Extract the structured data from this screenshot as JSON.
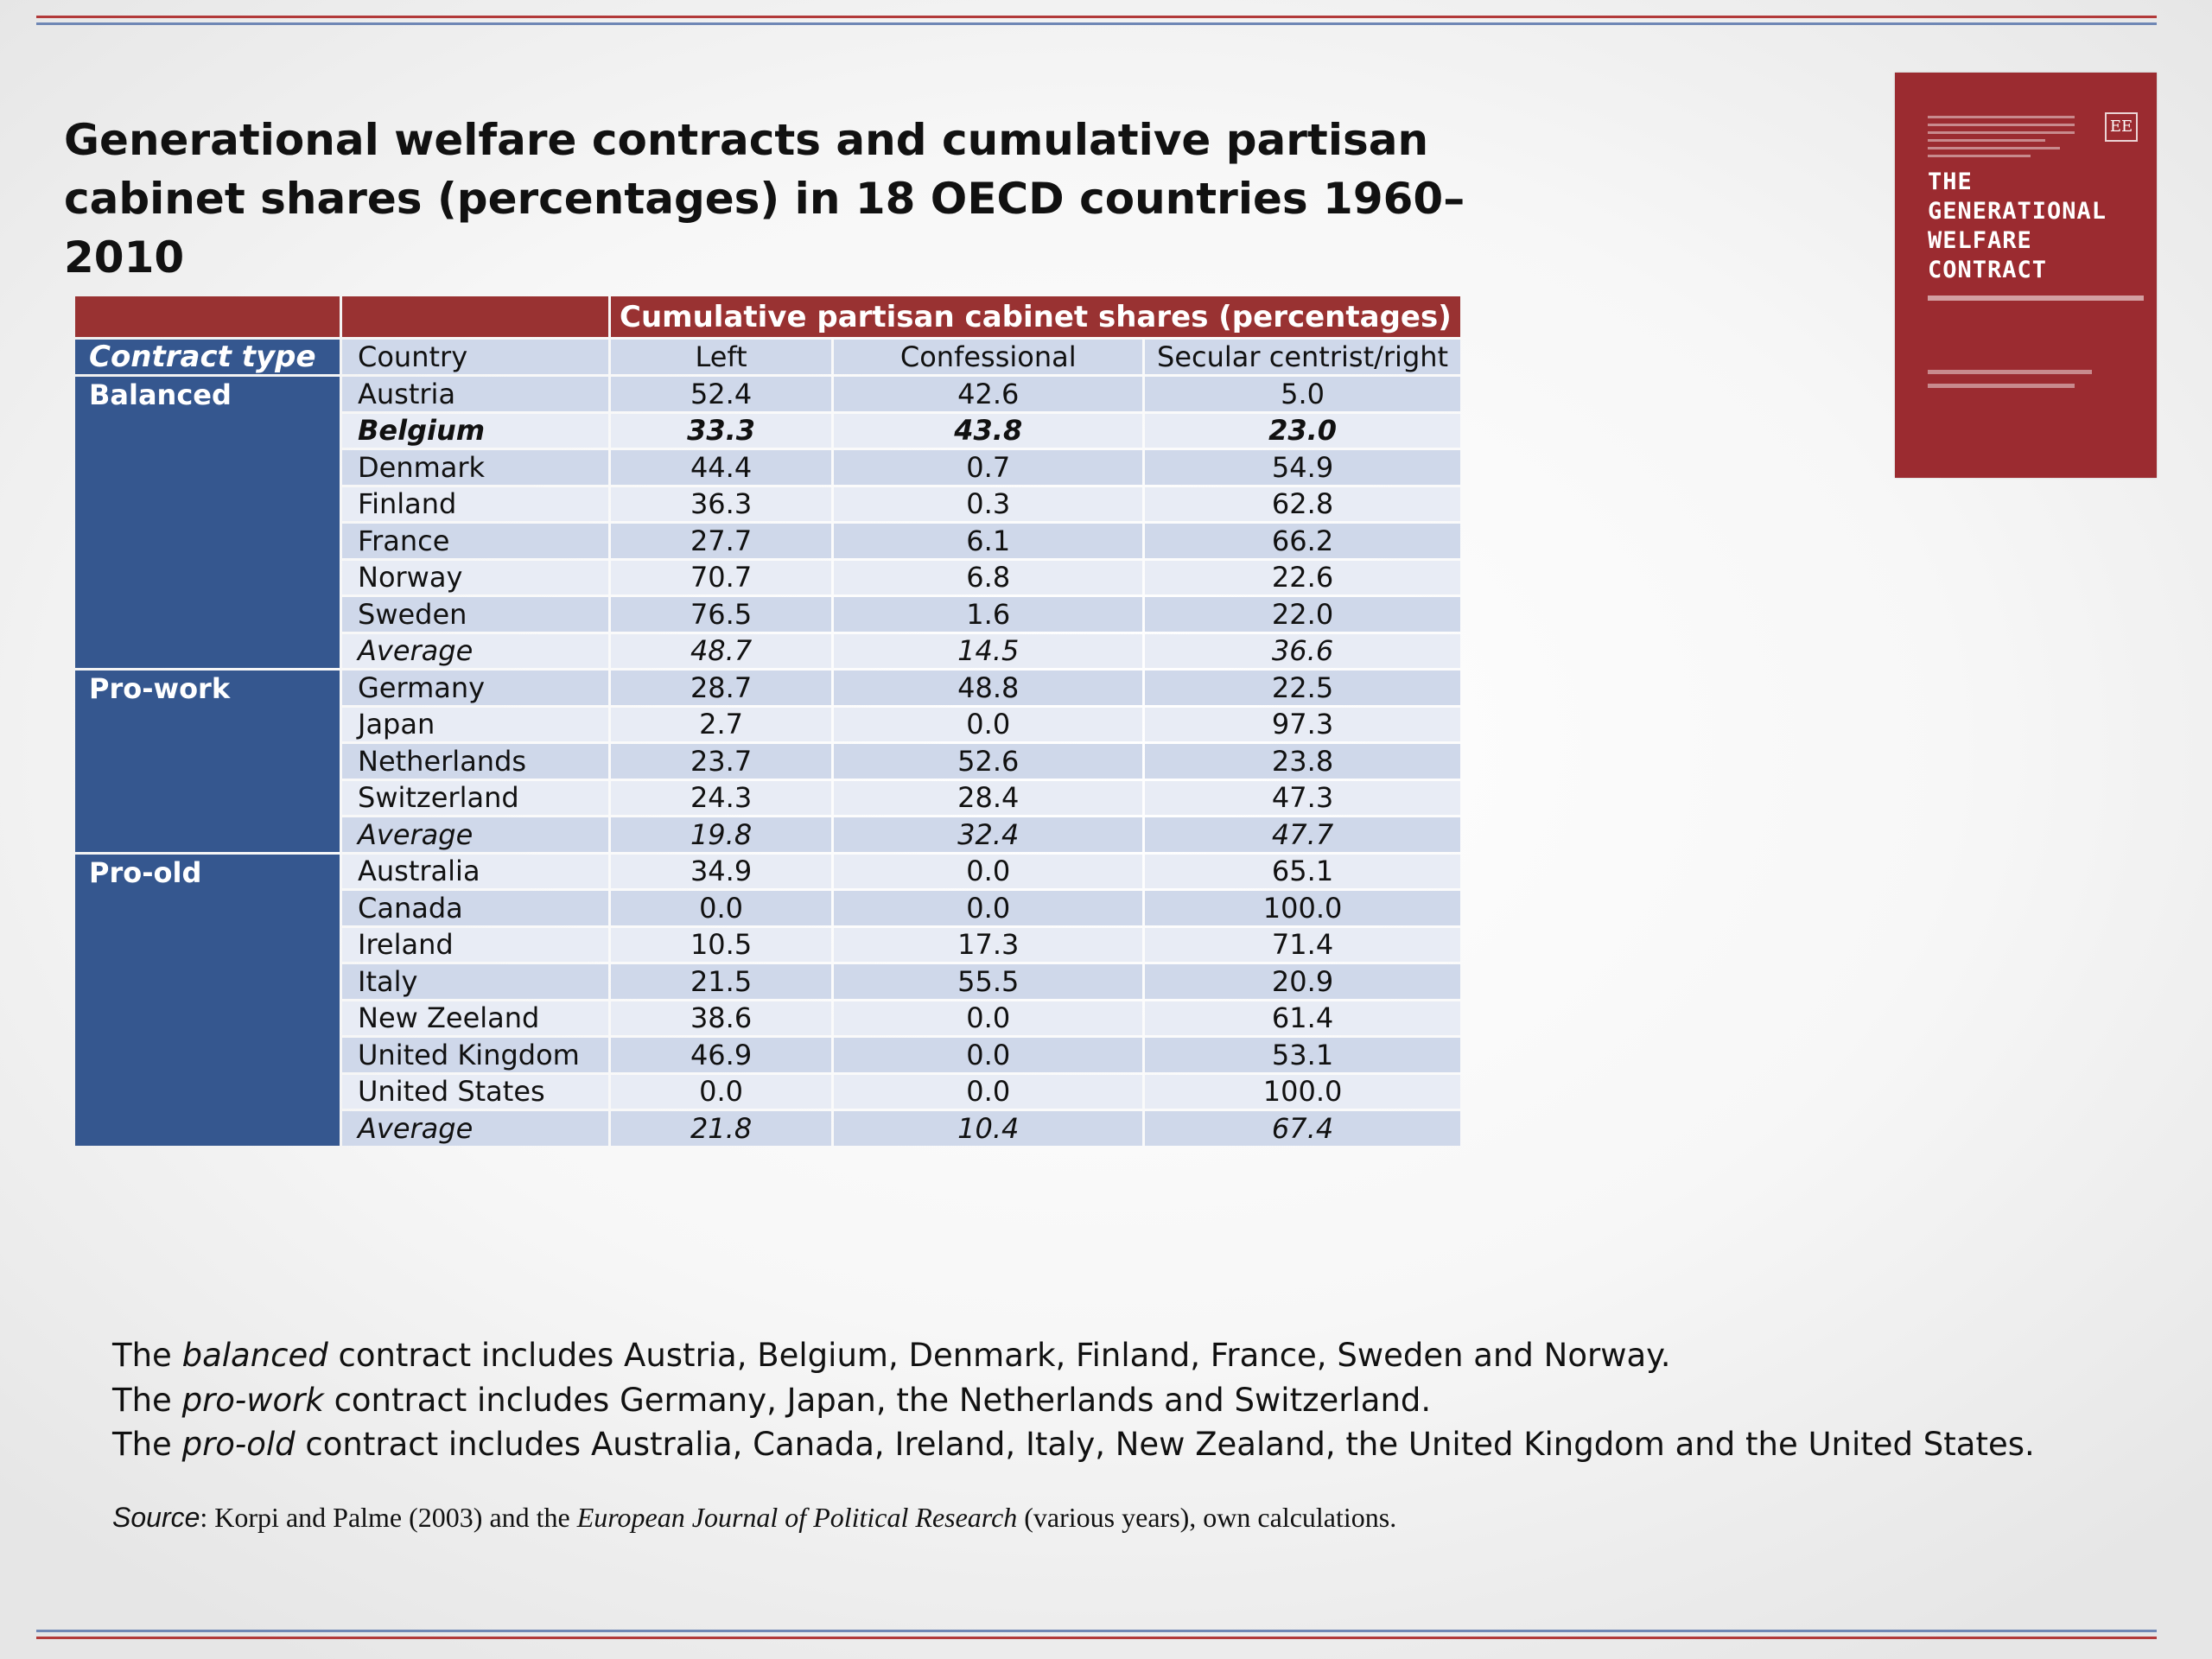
{
  "title": "Generational welfare contracts and cumulative partisan cabinet shares (percentages) in 18 OECD countries 1960–2010",
  "table": {
    "span_header": "Cumulative partisan cabinet shares (percentages)",
    "col_contract_type": "Contract type",
    "col_country": "Country",
    "col_left": "Left",
    "col_confessional": "Confessional",
    "col_secular": "Secular centrist/right",
    "groups": [
      {
        "label": "Balanced",
        "rows": [
          {
            "country": "Austria",
            "left": "52.4",
            "conf": "42.6",
            "sec": "5.0"
          },
          {
            "country": "Belgium",
            "left": "33.3",
            "conf": "43.8",
            "sec": "23.0"
          },
          {
            "country": "Denmark",
            "left": "44.4",
            "conf": "0.7",
            "sec": "54.9"
          },
          {
            "country": "Finland",
            "left": "36.3",
            "conf": "0.3",
            "sec": "62.8"
          },
          {
            "country": "France",
            "left": "27.7",
            "conf": "6.1",
            "sec": "66.2"
          },
          {
            "country": "Norway",
            "left": "70.7",
            "conf": "6.8",
            "sec": "22.6"
          },
          {
            "country": "Sweden",
            "left": "76.5",
            "conf": "1.6",
            "sec": "22.0"
          },
          {
            "country": "Average",
            "left": "48.7",
            "conf": "14.5",
            "sec": "36.6"
          }
        ]
      },
      {
        "label": "Pro-work",
        "rows": [
          {
            "country": "Germany",
            "left": "28.7",
            "conf": "48.8",
            "sec": "22.5"
          },
          {
            "country": "Japan",
            "left": "2.7",
            "conf": "0.0",
            "sec": "97.3"
          },
          {
            "country": "Netherlands",
            "left": "23.7",
            "conf": "52.6",
            "sec": "23.8"
          },
          {
            "country": "Switzerland",
            "left": "24.3",
            "conf": "28.4",
            "sec": "47.3"
          },
          {
            "country": "Average",
            "left": "19.8",
            "conf": "32.4",
            "sec": "47.7"
          }
        ]
      },
      {
        "label": "Pro-old",
        "rows": [
          {
            "country": "Australia",
            "left": "34.9",
            "conf": "0.0",
            "sec": "65.1"
          },
          {
            "country": "Canada",
            "left": "0.0",
            "conf": "0.0",
            "sec": "100.0"
          },
          {
            "country": "Ireland",
            "left": "10.5",
            "conf": "17.3",
            "sec": "71.4"
          },
          {
            "country": "Italy",
            "left": "21.5",
            "conf": "55.5",
            "sec": "20.9"
          },
          {
            "country": "New Zeeland",
            "left": "38.6",
            "conf": "0.0",
            "sec": "61.4"
          },
          {
            "country": "United Kingdom",
            "left": "46.9",
            "conf": "0.0",
            "sec": "53.1"
          },
          {
            "country": "United States",
            "left": "0.0",
            "conf": "0.0",
            "sec": "100.0"
          },
          {
            "country": "Average",
            "left": "21.8",
            "conf": "10.4",
            "sec": "67.4"
          }
        ]
      }
    ]
  },
  "book_cover": {
    "title_lines": [
      "THE",
      "GENERATIONAL",
      "WELFARE",
      "CONTRACT"
    ],
    "publisher_mark": "EE",
    "color": "#9b2b30"
  },
  "notes": {
    "n1_a": "The ",
    "n1_em": "balanced",
    "n1_b": " contract includes Austria, Belgium, Denmark, Finland, France, Sweden and Norway.",
    "n2_a": "The ",
    "n2_em": "pro-work",
    "n2_b": " contract includes Germany, Japan, the Netherlands and Switzerland.",
    "n3_a": "The ",
    "n3_em": "pro-old",
    "n3_b": " contract includes Australia, Canada, Ireland, Italy, New Zealand, the United Kingdom and the United States."
  },
  "source": {
    "label": "Source",
    "text_a": ": Korpi and Palme (2003) and the ",
    "journal": "European Journal of Political Research",
    "text_b": " (various years), own calculations."
  },
  "colors": {
    "header_red": "#993232",
    "group_blue": "#35578f",
    "row_blue": "#cfd8ea",
    "row_light": "#e8ecf5"
  }
}
